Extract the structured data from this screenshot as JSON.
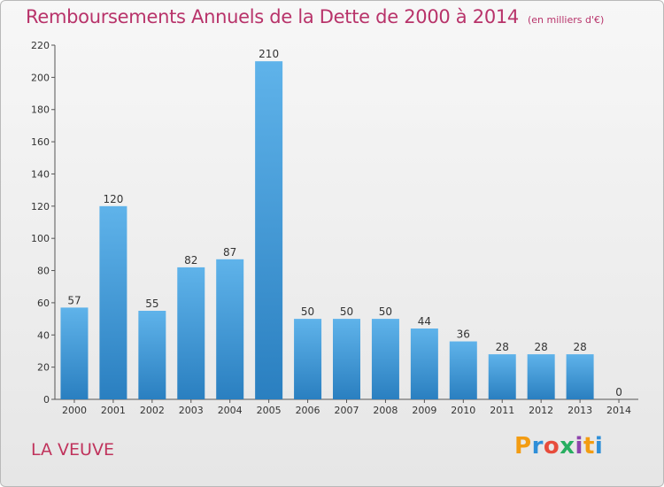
{
  "title": "Remboursements Annuels de la Dette de 2000 à 2014",
  "unit": "(en milliers d'€)",
  "commune": "LA VEUVE",
  "logo": "Proxiti",
  "colors": {
    "title": "#b8336a",
    "bar_top": "#5fb3ea",
    "bar_bottom": "#2a7fc0",
    "commune": "#c0335c"
  },
  "chart_data": {
    "type": "bar",
    "categories": [
      "2000",
      "2001",
      "2002",
      "2003",
      "2004",
      "2005",
      "2006",
      "2007",
      "2008",
      "2009",
      "2010",
      "2011",
      "2012",
      "2013",
      "2014"
    ],
    "values": [
      57,
      120,
      55,
      82,
      87,
      210,
      50,
      50,
      50,
      44,
      36,
      28,
      28,
      28,
      0
    ],
    "ylim": [
      0,
      220
    ],
    "yticks": [
      0,
      20,
      40,
      60,
      80,
      100,
      120,
      140,
      160,
      180,
      200,
      220
    ],
    "grid": false,
    "legend": "none"
  }
}
